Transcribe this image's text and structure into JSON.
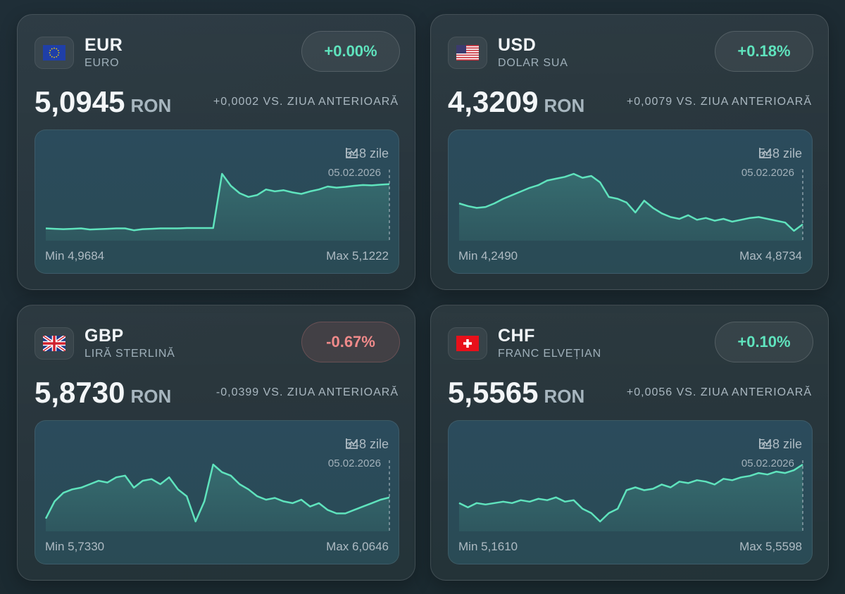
{
  "colors": {
    "line": "#5fe3bd",
    "up": "#5fe3bd",
    "down": "#f08a8a",
    "background": "#1e2c34"
  },
  "cards": [
    {
      "code": "EUR",
      "name": "EURO",
      "flag": "eu-flag-icon",
      "change": "+0.00%",
      "trend": "up",
      "price": "5,0945",
      "unit": "RON",
      "delta": "+0,0002 VS. ZIUA ANTERIOARĂ",
      "days": "548 zile",
      "date": "05.02.2026",
      "min_label": "Min 4,9684",
      "max_label": "Max 5,1222",
      "chart_icon": "chart-line-icon"
    },
    {
      "code": "USD",
      "name": "DOLAR SUA",
      "flag": "us-flag-icon",
      "change": "+0.18%",
      "trend": "up",
      "price": "4,3209",
      "unit": "RON",
      "delta": "+0,0079 VS. ZIUA ANTERIOARĂ",
      "days": "548 zile",
      "date": "05.02.2026",
      "min_label": "Min 4,2490",
      "max_label": "Max 4,8734",
      "chart_icon": "chart-line-icon"
    },
    {
      "code": "GBP",
      "name": "LIRĂ STERLINĂ",
      "flag": "uk-flag-icon",
      "change": "-0.67%",
      "trend": "down",
      "price": "5,8730",
      "unit": "RON",
      "delta": "-0,0399 VS. ZIUA ANTERIOARĂ",
      "days": "548 zile",
      "date": "05.02.2026",
      "min_label": "Min 5,7330",
      "max_label": "Max 6,0646",
      "chart_icon": "chart-line-icon"
    },
    {
      "code": "CHF",
      "name": "FRANC ELVEȚIAN",
      "flag": "ch-flag-icon",
      "change": "+0.10%",
      "trend": "up",
      "price": "5,5565",
      "unit": "RON",
      "delta": "+0,0056 VS. ZIUA ANTERIOARĂ",
      "days": "548 zile",
      "date": "05.02.2026",
      "min_label": "Min 5,1610",
      "max_label": "Max 5,5598",
      "chart_icon": "chart-line-icon"
    }
  ],
  "chart_data": [
    {
      "type": "area",
      "series": "EUR",
      "min": 4.9684,
      "max": 5.1222,
      "last_date": "05.02.2026",
      "values": [
        4.975,
        4.974,
        4.973,
        4.974,
        4.975,
        4.972,
        4.973,
        4.974,
        4.975,
        4.975,
        4.97,
        4.973,
        4.974,
        4.975,
        4.975,
        4.975,
        4.976,
        4.976,
        4.976,
        4.976,
        5.1222,
        5.09,
        5.07,
        5.06,
        5.065,
        5.08,
        5.075,
        5.078,
        5.072,
        5.068,
        5.075,
        5.08,
        5.088,
        5.085,
        5.087,
        5.09,
        5.092,
        5.091,
        5.093,
        5.0945
      ]
    },
    {
      "type": "area",
      "series": "USD",
      "min": 4.249,
      "max": 4.8734,
      "last_date": "05.02.2026",
      "values": [
        4.55,
        4.52,
        4.5,
        4.51,
        4.55,
        4.6,
        4.64,
        4.68,
        4.72,
        4.75,
        4.8,
        4.82,
        4.84,
        4.8734,
        4.83,
        4.85,
        4.78,
        4.62,
        4.6,
        4.56,
        4.45,
        4.58,
        4.5,
        4.44,
        4.4,
        4.38,
        4.42,
        4.37,
        4.39,
        4.36,
        4.38,
        4.35,
        4.37,
        4.39,
        4.4,
        4.38,
        4.36,
        4.34,
        4.249,
        4.3209
      ]
    },
    {
      "type": "area",
      "series": "GBP",
      "min": 5.733,
      "max": 6.0646,
      "last_date": "05.02.2026",
      "values": [
        5.75,
        5.85,
        5.9,
        5.92,
        5.93,
        5.95,
        5.97,
        5.96,
        5.99,
        6.0,
        5.93,
        5.97,
        5.98,
        5.95,
        5.99,
        5.92,
        5.88,
        5.733,
        5.85,
        6.0646,
        6.02,
        6.0,
        5.95,
        5.92,
        5.88,
        5.86,
        5.87,
        5.85,
        5.84,
        5.86,
        5.82,
        5.84,
        5.8,
        5.78,
        5.78,
        5.8,
        5.82,
        5.84,
        5.86,
        5.873
      ]
    },
    {
      "type": "area",
      "series": "CHF",
      "min": 5.161,
      "max": 5.5598,
      "last_date": "05.02.2026",
      "values": [
        5.29,
        5.26,
        5.29,
        5.28,
        5.29,
        5.3,
        5.29,
        5.31,
        5.3,
        5.32,
        5.31,
        5.33,
        5.3,
        5.31,
        5.25,
        5.22,
        5.161,
        5.22,
        5.25,
        5.38,
        5.4,
        5.38,
        5.39,
        5.42,
        5.4,
        5.44,
        5.43,
        5.45,
        5.44,
        5.42,
        5.46,
        5.45,
        5.47,
        5.48,
        5.5,
        5.49,
        5.51,
        5.5,
        5.52,
        5.5598
      ]
    }
  ]
}
